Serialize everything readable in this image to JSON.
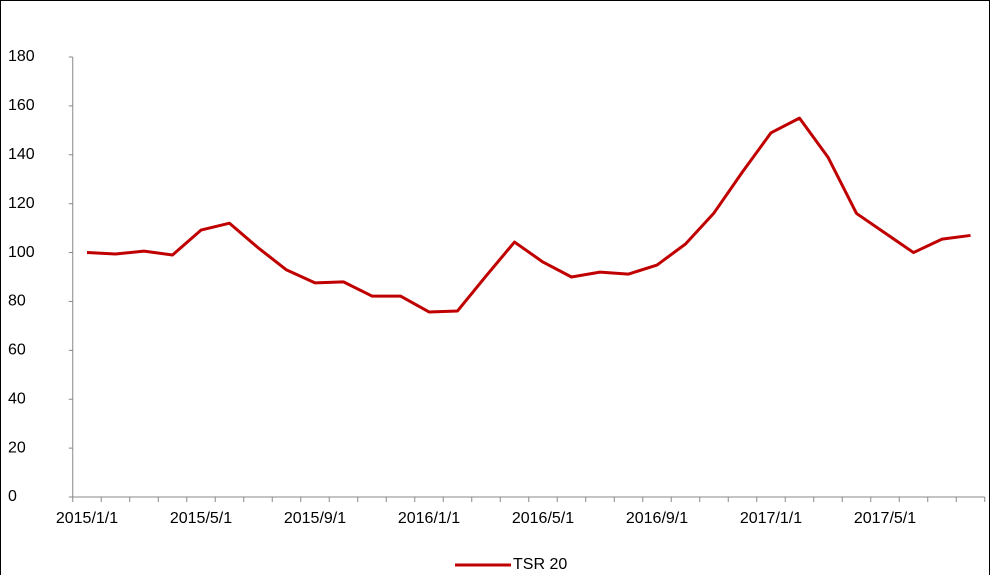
{
  "chart_data": {
    "type": "line",
    "categories": [
      "2015/1/1",
      null,
      null,
      null,
      "2015/5/1",
      null,
      null,
      null,
      "2015/9/1",
      null,
      null,
      null,
      "2016/1/1",
      null,
      null,
      null,
      "2016/5/1",
      null,
      null,
      null,
      "2016/9/1",
      null,
      null,
      null,
      "2017/1/1",
      null,
      null,
      null,
      "2017/5/1",
      null,
      null,
      null
    ],
    "series": [
      {
        "name": "TSR 20",
        "color": "#c00000",
        "values": [
          100,
          99.4,
          100.6,
          99,
          109.2,
          112,
          102,
          92.9,
          87.6,
          88,
          82.2,
          82.2,
          75.7,
          76.1,
          90.4,
          104.3,
          96.1,
          90,
          92,
          91.2,
          94.9,
          103.5,
          116.2,
          133,
          149,
          155,
          139,
          116,
          108,
          100,
          105.5,
          107
        ]
      }
    ],
    "ylim": [
      0,
      180
    ],
    "yticks": [
      0,
      20,
      40,
      60,
      80,
      100,
      120,
      140,
      160,
      180
    ],
    "grid": false,
    "legend": "bottom"
  }
}
